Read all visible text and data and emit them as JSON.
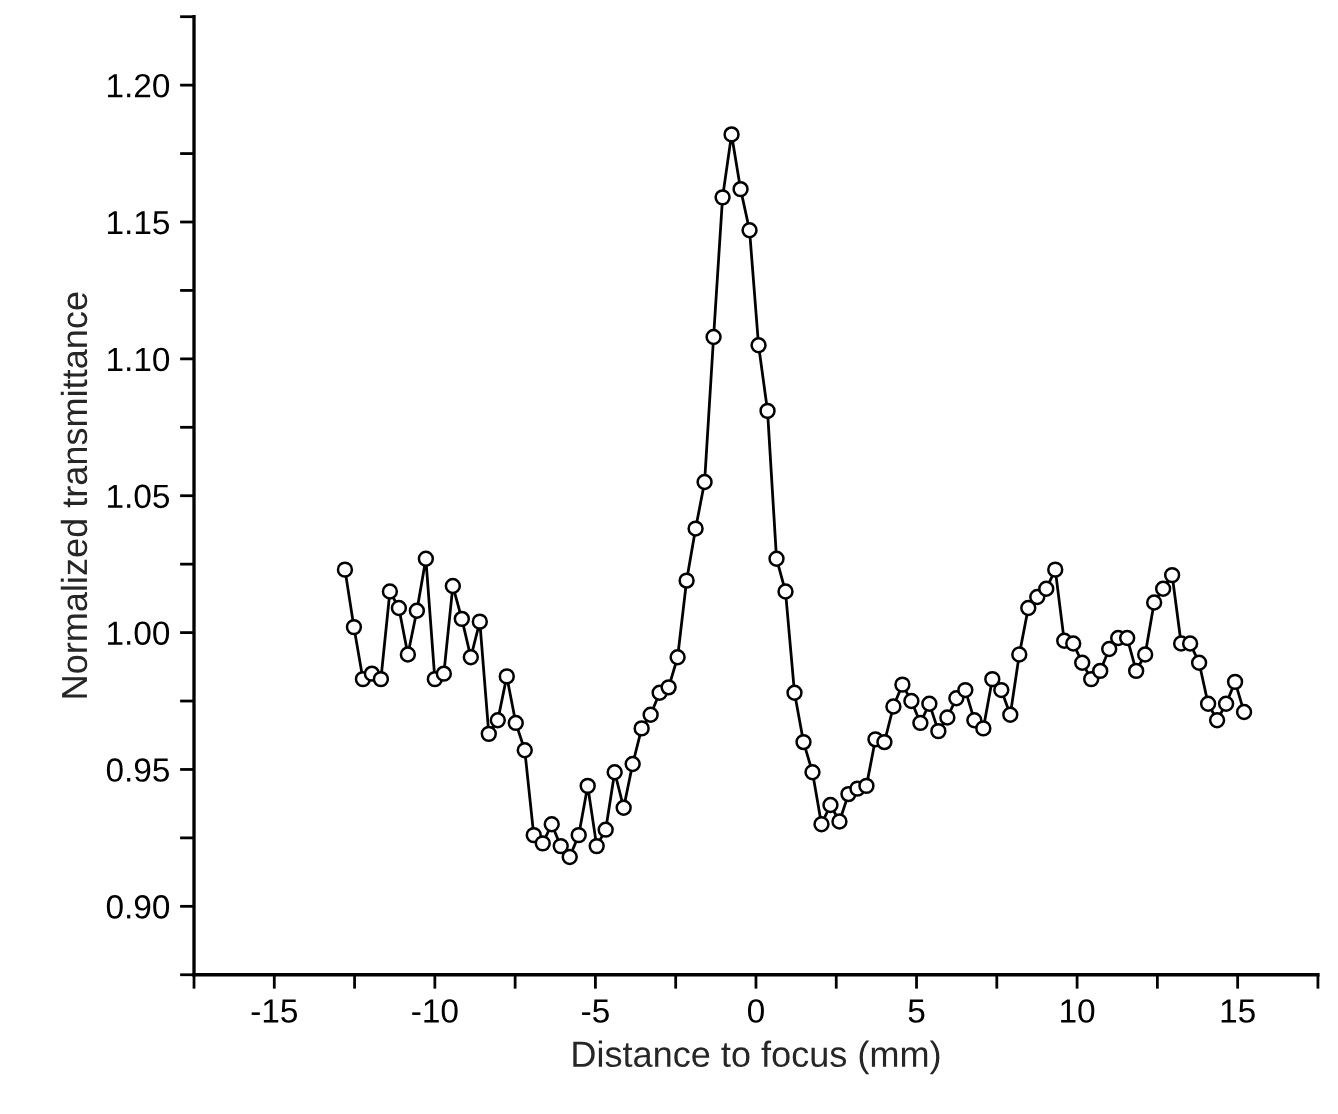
{
  "chart_data": {
    "type": "line",
    "xlabel": "Distance to focus (mm)",
    "ylabel": "Normalized transmittance",
    "x": [
      -12.8,
      -12.52,
      -12.24,
      -11.96,
      -11.68,
      -11.4,
      -11.12,
      -10.84,
      -10.56,
      -10.28,
      -10.0,
      -9.72,
      -9.44,
      -9.16,
      -8.88,
      -8.6,
      -8.32,
      -8.04,
      -7.76,
      -7.48,
      -7.2,
      -6.92,
      -6.64,
      -6.36,
      -6.08,
      -5.8,
      -5.52,
      -5.24,
      -4.96,
      -4.68,
      -4.4,
      -4.12,
      -3.84,
      -3.56,
      -3.28,
      -3.0,
      -2.72,
      -2.44,
      -2.16,
      -1.88,
      -1.6,
      -1.32,
      -1.04,
      -0.76,
      -0.48,
      -0.2,
      0.08,
      0.36,
      0.64,
      0.92,
      1.2,
      1.48,
      1.76,
      2.04,
      2.32,
      2.6,
      2.88,
      3.16,
      3.44,
      3.72,
      4.0,
      4.28,
      4.56,
      4.84,
      5.12,
      5.4,
      5.68,
      5.96,
      6.24,
      6.52,
      6.8,
      7.08,
      7.36,
      7.64,
      7.92,
      8.2,
      8.48,
      8.76,
      9.04,
      9.32,
      9.6,
      9.88,
      10.16,
      10.44,
      10.72,
      11.0,
      11.28,
      11.56,
      11.84,
      12.12,
      12.4,
      12.68,
      12.96,
      13.24,
      13.52,
      13.8,
      14.08,
      14.36,
      14.64,
      14.92,
      15.2
    ],
    "series": [
      {
        "color": "#000000",
        "values": [
          1.023,
          1.002,
          0.983,
          0.985,
          0.983,
          1.015,
          1.009,
          0.992,
          1.008,
          1.027,
          0.983,
          0.985,
          1.017,
          1.005,
          0.991,
          1.004,
          0.963,
          0.968,
          0.984,
          0.967,
          0.957,
          0.926,
          0.923,
          0.93,
          0.922,
          0.918,
          0.926,
          0.944,
          0.922,
          0.928,
          0.949,
          0.936,
          0.952,
          0.965,
          0.97,
          0.978,
          0.98,
          0.991,
          1.019,
          1.038,
          1.055,
          1.108,
          1.159,
          1.182,
          1.162,
          1.147,
          1.105,
          1.081,
          1.027,
          1.015,
          0.978,
          0.96,
          0.949,
          0.93,
          0.937,
          0.931,
          0.941,
          0.943,
          0.944,
          0.961,
          0.96,
          0.973,
          0.981,
          0.975,
          0.967,
          0.974,
          0.964,
          0.969,
          0.976,
          0.979,
          0.968,
          0.965,
          0.983,
          0.979,
          0.97,
          0.992,
          1.009,
          1.013,
          1.016,
          1.023,
          0.997,
          0.996,
          0.989,
          0.983,
          0.986,
          0.994,
          0.998,
          0.998,
          0.986,
          0.992,
          1.011,
          1.016,
          1.021,
          0.996,
          0.996,
          0.989,
          0.974,
          0.968,
          0.974,
          0.982,
          0.971
        ]
      }
    ],
    "xlim": [
      -17.5,
      17.5
    ],
    "xticks": [
      {
        "value": -17.5,
        "label": null
      },
      -15,
      {
        "value": -12.5,
        "label": null
      },
      -10,
      {
        "value": -7.5,
        "label": null
      },
      -5,
      {
        "value": -2.5,
        "label": null
      },
      0,
      {
        "value": 2.5,
        "label": null
      },
      5,
      {
        "value": 7.5,
        "label": null
      },
      10,
      {
        "value": 12.5,
        "label": null
      },
      15,
      {
        "value": 17.5,
        "label": null
      }
    ],
    "ylim": [
      0.875,
      1.225
    ],
    "yticks": [
      {
        "value": 0.875,
        "label": null
      },
      {
        "value": 0.9,
        "label": "0.90"
      },
      {
        "value": 0.925,
        "label": null
      },
      {
        "value": 0.95,
        "label": "0.95"
      },
      {
        "value": 0.975,
        "label": null
      },
      {
        "value": 1.0,
        "label": "1.00"
      },
      {
        "value": 1.025,
        "label": null
      },
      {
        "value": 1.05,
        "label": "1.05"
      },
      {
        "value": 1.075,
        "label": null
      },
      {
        "value": 1.1,
        "label": "1.10"
      },
      {
        "value": 1.125,
        "label": null
      },
      {
        "value": 1.15,
        "label": "1.15"
      },
      {
        "value": 1.175,
        "label": null
      },
      {
        "value": 1.2,
        "label": "1.20"
      },
      {
        "value": 1.225,
        "label": null
      }
    ],
    "marker": "circle",
    "line_style": "solid",
    "grid": false
  }
}
